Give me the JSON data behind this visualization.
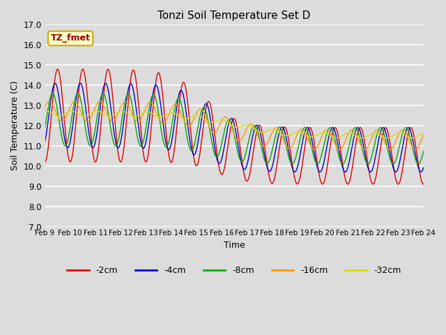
{
  "title": "Tonzi Soil Temperature Set D",
  "xlabel": "Time",
  "ylabel": "Soil Temperature (C)",
  "ylim": [
    7.0,
    17.0
  ],
  "yticks": [
    7.0,
    8.0,
    9.0,
    10.0,
    11.0,
    12.0,
    13.0,
    14.0,
    15.0,
    16.0,
    17.0
  ],
  "series_colors": [
    "#dd0000",
    "#0000cc",
    "#00aa00",
    "#ff9900",
    "#dddd00"
  ],
  "series_labels": [
    "-2cm",
    "-4cm",
    "-8cm",
    "-16cm",
    "-32cm"
  ],
  "xtick_labels": [
    "Feb 9",
    "Feb 10",
    "Feb 11",
    "Feb 12",
    "Feb 13",
    "Feb 14",
    "Feb 15",
    "Feb 16",
    "Feb 17",
    "Feb 18",
    "Feb 19",
    "Feb 20",
    "Feb 21",
    "Feb 22",
    "Feb 23",
    "Feb 24"
  ],
  "annotation_text": "TZ_fmet",
  "annotation_bg": "#ffffcc",
  "annotation_border": "#ccaa00",
  "bg_color": "#dcdcdc",
  "n_days": 15,
  "n_pts": 1440
}
